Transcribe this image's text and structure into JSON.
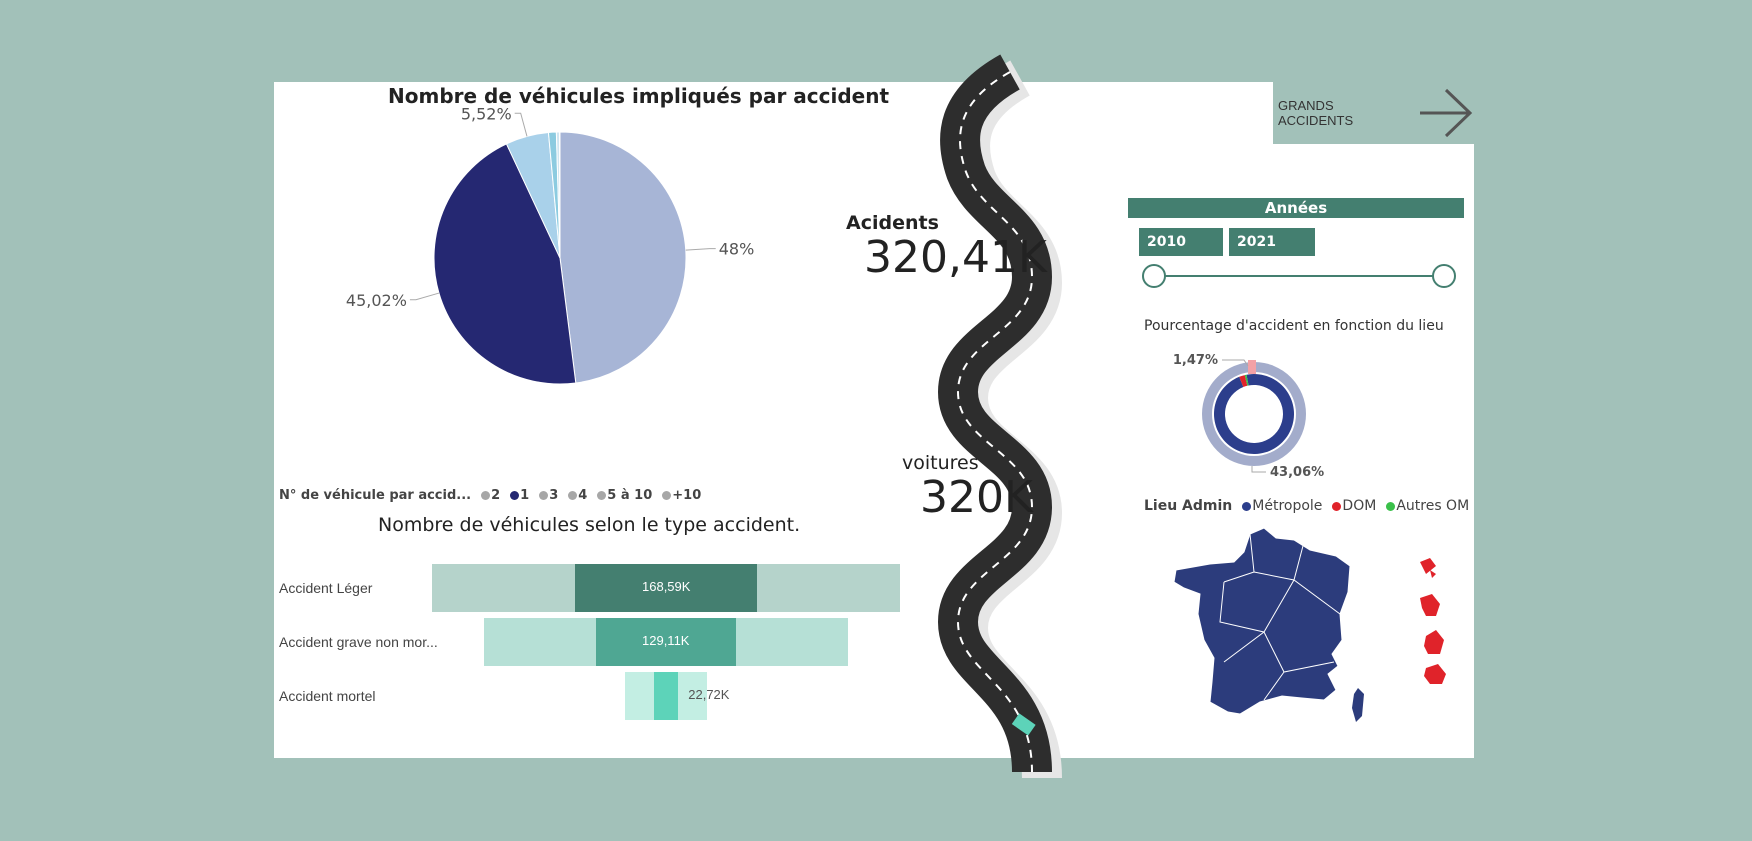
{
  "pie": {
    "title": "Nombre de véhicules impliqués par accident",
    "legend_title": "N° de véhicule par accid...",
    "legend_items": [
      {
        "label": "2",
        "color": "#a7a7a7"
      },
      {
        "label": "1",
        "color": "#252872"
      },
      {
        "label": "3",
        "color": "#a7a7a7"
      },
      {
        "label": "4",
        "color": "#a7a7a7"
      },
      {
        "label": "5 à 10",
        "color": "#a7a7a7"
      },
      {
        "label": "+10",
        "color": "#a7a7a7"
      }
    ]
  },
  "funnel": {
    "title": "Nombre de véhicules selon le type accident."
  },
  "kpi": {
    "accidents_label": "Acidents",
    "accidents_value": "320,41K",
    "cars_label": "voitures",
    "cars_value": "320K"
  },
  "nav": {
    "label": "GRANDS ACCIDENTS"
  },
  "years": {
    "header": "Années",
    "start": "2010",
    "end": "2021",
    "slider_start_fraction": 0,
    "slider_end_fraction": 1
  },
  "donut": {
    "title": "Pourcentage d'accident en fonction du lieu",
    "legend_title": "Lieu Admin",
    "legend_items": [
      {
        "label": "Métropole",
        "color": "#2c3e8c"
      },
      {
        "label": "DOM",
        "color": "#e0232a"
      },
      {
        "label": "Autres OM",
        "color": "#3ac04a"
      }
    ]
  },
  "chart_data": [
    {
      "type": "pie",
      "title": "Nombre de véhicules impliqués par accident",
      "legend_title": "N° de véhicule par accid...",
      "series": [
        {
          "name": "2",
          "value": 48,
          "label": "48%",
          "color": "#a7b5d6"
        },
        {
          "name": "1",
          "value": 45.02,
          "label": "45,02%",
          "color": "#252872"
        },
        {
          "name": "3",
          "value": 5.52,
          "label": "5,52%",
          "color": "#a9d1ea"
        },
        {
          "name": "4",
          "value": 1.0,
          "label": "",
          "color": "#8ccbe0"
        },
        {
          "name": "5 à 10",
          "value": 0.4,
          "label": "",
          "color": "#d0e6f1"
        },
        {
          "name": "+10",
          "value": 0.06,
          "label": "",
          "color": "#e6eff5"
        }
      ]
    },
    {
      "type": "bar",
      "title": "Nombre de véhicules selon le type accident.",
      "categories": [
        "Accident Léger",
        "Accident grave non mor...",
        "Accident mortel"
      ],
      "values": [
        168590,
        129110,
        22720
      ],
      "value_labels": [
        "168,59K",
        "129,11K",
        "22,72K"
      ],
      "colors": [
        "#447f70",
        "#4fa793",
        "#5dd3b9"
      ]
    },
    {
      "type": "pie",
      "title": "Pourcentage d'accident en fonction du lieu",
      "legend_title": "Lieu Admin",
      "series": [
        {
          "name": "Métropole",
          "value": 97,
          "color": "#2c3e8c"
        },
        {
          "name": "DOM",
          "value": 2.3,
          "color": "#e0232a"
        },
        {
          "name": "Autres OM",
          "value": 0.7,
          "color": "#3ac04a"
        }
      ],
      "labels": [
        "1,47%",
        "43,06%"
      ]
    }
  ]
}
